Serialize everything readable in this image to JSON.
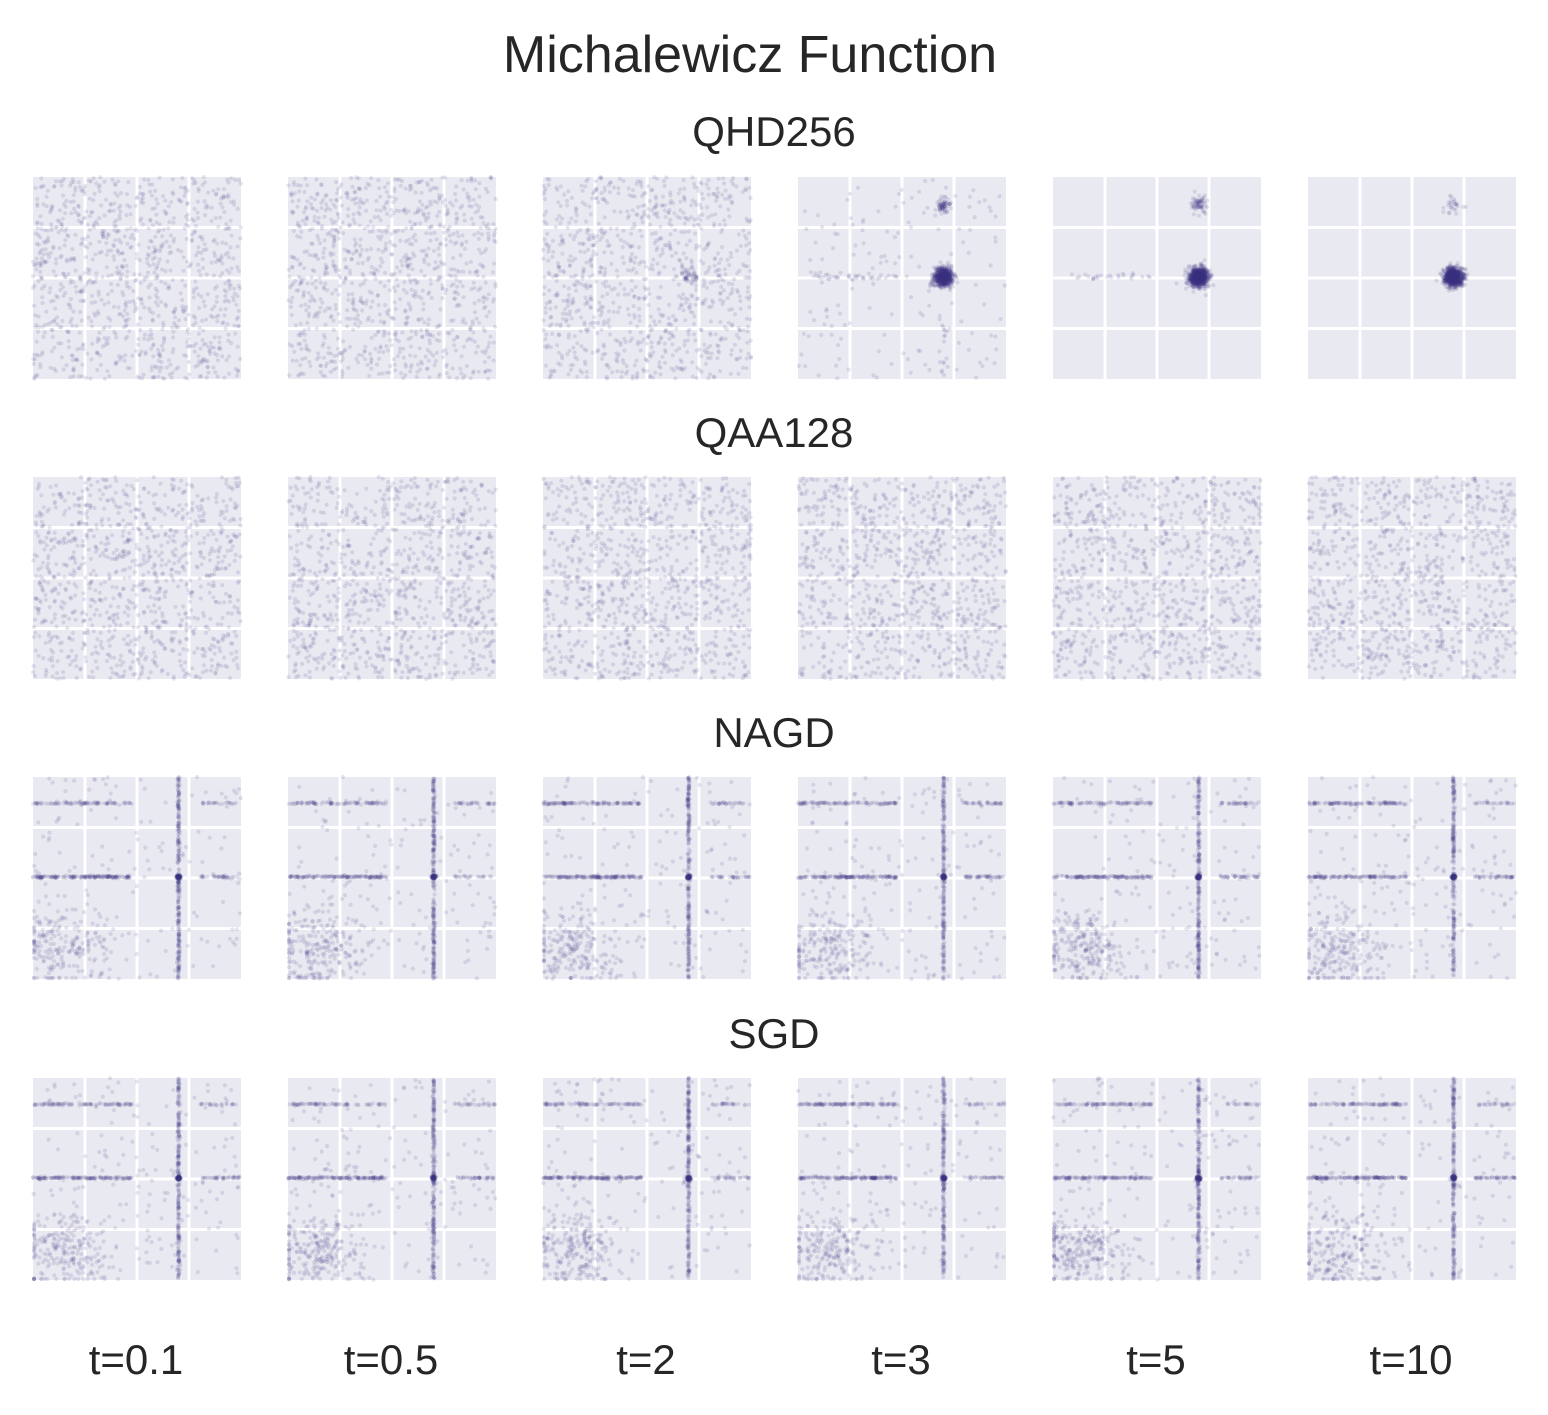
{
  "chart_data": {
    "type": "scatter",
    "title": "Michalewicz Function",
    "rows": [
      {
        "name": "QHD256",
        "pattern": "qhd"
      },
      {
        "name": "QAA128",
        "pattern": "uniform"
      },
      {
        "name": "NAGD",
        "pattern": "gradient"
      },
      {
        "name": "SGD",
        "pattern": "gradient"
      }
    ],
    "columns": [
      "t=0.1",
      "t=0.5",
      "t=2",
      "t=3",
      "t=5",
      "t=10"
    ],
    "domain": {
      "xlim": [
        0,
        4
      ],
      "ylim": [
        0,
        4
      ]
    },
    "grid": true,
    "axes_visible": false,
    "samples_per_panel": 1000,
    "point_color": "#3b3486",
    "panel_background": "#e9e9f1",
    "grid_color": "#ffffff",
    "global_minimum": {
      "x": 2.8,
      "y": 2.02
    },
    "qhd_concentration": [
      0.0,
      0.0,
      0.05,
      0.72,
      0.9,
      0.98
    ],
    "gradient_attractors": {
      "vertical_line_x": 2.8,
      "horizontal_lines_y": [
        2.02,
        3.48
      ],
      "cluster_center": [
        0.6,
        0.6
      ]
    }
  }
}
